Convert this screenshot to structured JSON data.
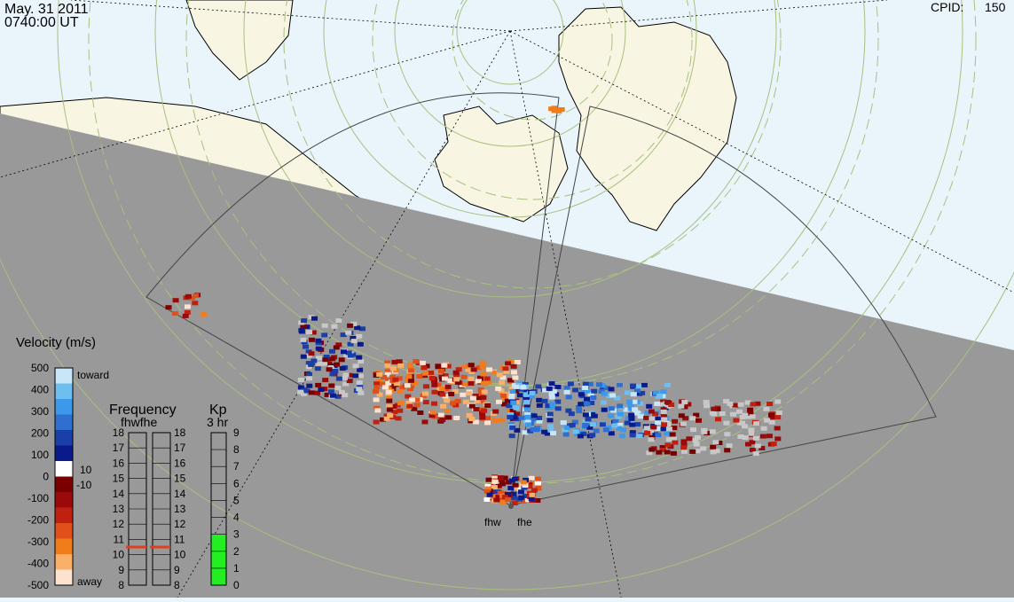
{
  "header": {
    "date": "May. 31 2011",
    "time": "0740:00 UT",
    "cpid_label": "CPID:",
    "cpid_value": "150"
  },
  "stations": {
    "west": "fhw",
    "east": "fhe"
  },
  "velocity_scale": {
    "title": "Velocity (m/s)",
    "ticks": [
      "500",
      "400",
      "300",
      "200",
      "100",
      "0",
      "-100",
      "-200",
      "-300",
      "-400",
      "-500"
    ],
    "toward_label": "toward",
    "away_label": "away",
    "ground_pos": "10",
    "ground_neg": "-10",
    "colors": [
      "#fde3cf",
      "#fbb06a",
      "#f07c1a",
      "#e0501b",
      "#c0200f",
      "#9a0a0a",
      "#7a0000",
      "#ffffff",
      "#0a1a8a",
      "#1a3fa8",
      "#2f6fd0",
      "#3c98e8",
      "#6fbef0",
      "#c9e6f8"
    ]
  },
  "frequency_panel": {
    "title": "Frequency",
    "subtitle": "fhwfhe",
    "ticks": [
      "18",
      "17",
      "16",
      "15",
      "14",
      "13",
      "12",
      "11",
      "10",
      "9",
      "8"
    ],
    "fhw_mhz": 10.5,
    "fhe_mhz": 10.5,
    "marker_color": "#e0401b"
  },
  "kp_panel": {
    "title": "Kp",
    "subtitle": "3 hr",
    "ticks": [
      "9",
      "8",
      "7",
      "6",
      "5",
      "4",
      "3",
      "2",
      "1",
      "0"
    ],
    "value": 3,
    "fill_color": "#22ee22"
  },
  "colors": {
    "night_shade": "#999999",
    "day_ocean": "#e9f5fb",
    "land": "#f8f6e2",
    "ground_scatter": "#c8c8c8"
  }
}
